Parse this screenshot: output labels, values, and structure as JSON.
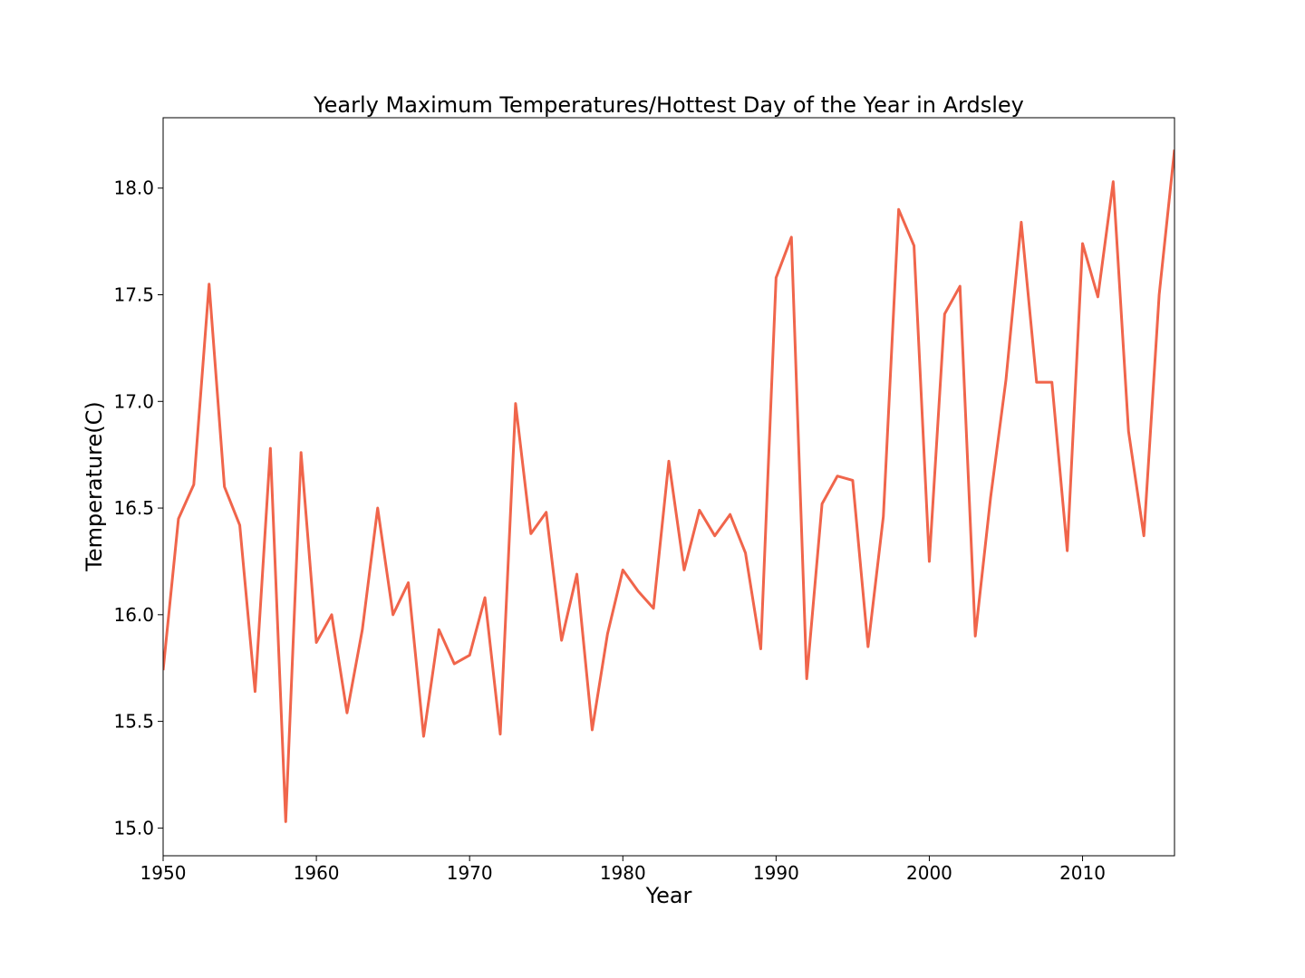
{
  "chart_data": {
    "type": "line",
    "title": "Yearly Maximum Temperatures/Hottest Day of the Year in Ardsley",
    "xlabel": "Year",
    "ylabel": "Temperature(C)",
    "xlim": [
      1950,
      2016
    ],
    "ylim": [
      14.87,
      18.33
    ],
    "xticks": [
      1950,
      1960,
      1970,
      1980,
      1990,
      2000,
      2010
    ],
    "xtick_labels": [
      "1950",
      "1960",
      "1970",
      "1980",
      "1990",
      "2000",
      "2010"
    ],
    "yticks": [
      15.0,
      15.5,
      16.0,
      16.5,
      17.0,
      17.5,
      18.0
    ],
    "ytick_labels": [
      "15.0",
      "15.5",
      "16.0",
      "16.5",
      "17.0",
      "17.5",
      "18.0"
    ],
    "grid": false,
    "line_color": "#f0654b",
    "series": [
      {
        "x": [
          1950,
          1951,
          1952,
          1953,
          1954,
          1955,
          1956,
          1957,
          1958,
          1959,
          1960,
          1961,
          1962,
          1963,
          1964,
          1965,
          1966,
          1967,
          1968,
          1969,
          1970,
          1971,
          1972,
          1973,
          1974,
          1975,
          1976,
          1977,
          1978,
          1979,
          1980,
          1981,
          1982,
          1983,
          1984,
          1985,
          1986,
          1987,
          1988,
          1989,
          1990,
          1991,
          1992,
          1993,
          1994,
          1995,
          1996,
          1997,
          1998,
          1999,
          2000,
          2001,
          2002,
          2003,
          2004,
          2005,
          2006,
          2007,
          2008,
          2009,
          2010,
          2011,
          2012,
          2013,
          2014,
          2015,
          2016
        ],
        "values": [
          15.74,
          16.45,
          16.61,
          17.55,
          16.6,
          16.42,
          15.64,
          16.78,
          15.03,
          16.76,
          15.87,
          16.0,
          15.54,
          15.93,
          16.5,
          16.0,
          16.15,
          15.43,
          15.93,
          15.77,
          15.81,
          16.08,
          15.44,
          16.99,
          16.38,
          16.48,
          15.88,
          16.19,
          15.46,
          15.91,
          16.21,
          16.11,
          16.03,
          16.72,
          16.21,
          16.49,
          16.37,
          16.47,
          16.29,
          15.84,
          17.58,
          17.77,
          15.7,
          16.52,
          16.65,
          16.63,
          15.85,
          16.46,
          17.9,
          17.73,
          16.25,
          17.41,
          17.54,
          15.9,
          16.55,
          17.1,
          17.84,
          17.09,
          17.09,
          16.3,
          17.74,
          17.49,
          18.03,
          16.86,
          16.37,
          17.5,
          18.18
        ]
      }
    ]
  }
}
